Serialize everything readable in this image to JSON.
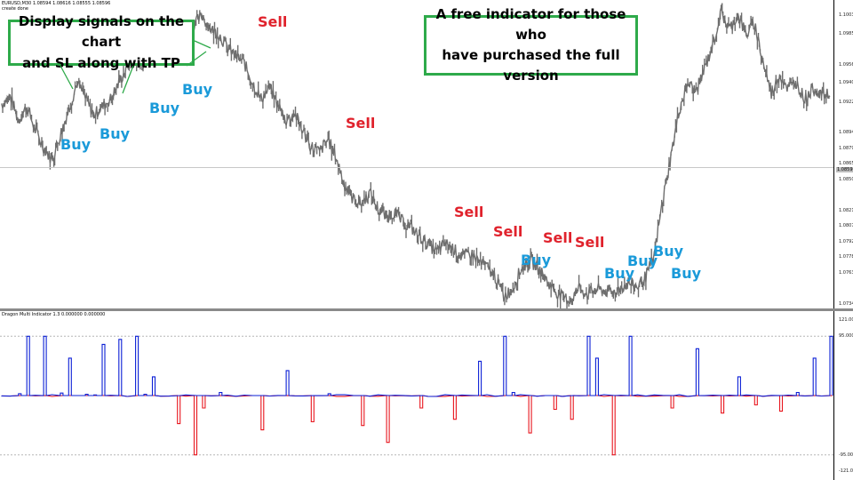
{
  "header": {
    "main_info": "EURUSD,M30  1.08594 1.08616 1.08555 1.08596",
    "script_label": "create done",
    "indicator_info": "Dragon Multi Indicator 1.3  0.000000 0.000000"
  },
  "annotations": {
    "left_callout_line1": "Display signals on the chart",
    "left_callout_line2": "and SL along with TP",
    "right_callout_line1": "A free indicator for those who",
    "right_callout_line2": "have purchased the full version"
  },
  "signals": [
    {
      "type": "sell",
      "label": "Sell"
    },
    {
      "type": "sell",
      "label": "Sell"
    },
    {
      "type": "sell",
      "label": "Sell"
    },
    {
      "type": "sell",
      "label": "Sell"
    },
    {
      "type": "sell",
      "label": "Sell"
    },
    {
      "type": "sell",
      "label": "Sell"
    },
    {
      "type": "buy",
      "label": "Buy"
    },
    {
      "type": "buy",
      "label": "Buy"
    },
    {
      "type": "buy",
      "label": "Buy"
    },
    {
      "type": "buy",
      "label": "Buy"
    },
    {
      "type": "buy",
      "label": "Buy"
    },
    {
      "type": "buy",
      "label": "Buy"
    },
    {
      "type": "buy",
      "label": "Buy"
    },
    {
      "type": "buy",
      "label": "Buy"
    }
  ],
  "colors": {
    "price_line": "#6e6e6e",
    "indicator_positive": "#0b1fd6",
    "indicator_negative": "#e8161e",
    "callout_border": "#2eaa4a",
    "sell_text": "#e0222c",
    "buy_text": "#1a9ad9"
  },
  "chart_data": [
    {
      "type": "line",
      "series": [
        {
          "values": [
            1.092,
            1.0928,
            1.0905,
            1.0918,
            1.0896,
            1.088,
            1.0868,
            1.0892,
            1.0915,
            1.094,
            1.0926,
            1.091,
            1.0918,
            1.0925,
            1.094,
            1.0955,
            1.0962,
            1.0958,
            1.097,
            1.0982,
            1.0988,
            1.0975,
            1.0986,
            1.0995,
            1.1002,
            1.099,
            1.0985,
            1.0972,
            1.0965,
            1.0958,
            1.094,
            1.0925,
            1.0935,
            1.092,
            1.0905,
            1.0912,
            1.0895,
            1.088,
            1.0876,
            1.0888,
            1.087,
            1.0845,
            1.0832,
            1.0828,
            1.0838,
            1.0822,
            1.0815,
            1.082,
            1.081,
            1.0805,
            1.0797,
            1.079,
            1.0783,
            1.0791,
            1.0786,
            1.0778,
            1.0782,
            1.0775,
            1.0769,
            1.076,
            1.0742,
            1.0748,
            1.0766,
            1.0775,
            1.077,
            1.0758,
            1.0748,
            1.0741,
            1.0738,
            1.075,
            1.0744,
            1.0749,
            1.0747,
            1.0745,
            1.075,
            1.0754,
            1.0751,
            1.076,
            1.078,
            1.083,
            1.0872,
            1.0915,
            1.094,
            1.0932,
            1.0952,
            1.0975,
            1.1005,
            1.099,
            1.1003,
            1.0985,
            1.0995,
            1.096,
            1.093,
            1.0948,
            1.0935,
            1.094,
            1.0925,
            1.0935,
            1.093,
            1.0928
          ]
        }
      ],
      "ylim": [
        1.07305,
        1.1017
      ],
      "y_ticks": [
        "1.10030",
        "1.09855",
        "1.09565",
        "1.09400",
        "1.09220",
        "1.08940",
        "1.08795",
        "1.08650",
        "1.08505",
        "1.08215",
        "1.08070",
        "1.07925",
        "1.07780",
        "1.07635",
        "1.07345"
      ],
      "current_price": "1.08596",
      "grid": false
    },
    {
      "type": "line",
      "series": [
        {
          "values": [
            0,
            0,
            3,
            95,
            0,
            95,
            0,
            4,
            60,
            0,
            2,
            1,
            82,
            0,
            90,
            0,
            95,
            2,
            30,
            0,
            0,
            -45,
            0,
            -95,
            -20,
            0,
            5,
            0,
            0,
            0,
            0,
            -55,
            0,
            0,
            40,
            0,
            0,
            -42,
            0,
            3,
            0,
            0,
            0,
            -48,
            0,
            0,
            -75,
            0,
            0,
            0,
            -20,
            0,
            0,
            0,
            -38,
            0,
            0,
            55,
            0,
            0,
            95,
            5,
            0,
            -60,
            0,
            0,
            -22,
            0,
            -38,
            0,
            95,
            60,
            0,
            -95,
            0,
            95,
            0,
            0,
            0,
            0,
            -20,
            0,
            0,
            75,
            0,
            0,
            -28,
            0,
            30,
            0,
            -15,
            0,
            0,
            -25,
            0,
            5,
            0,
            60,
            0,
            95
          ]
        }
      ],
      "ylim": [
        -121,
        121
      ],
      "y_ticks": [
        "121.0000",
        "95.0000",
        "-95.0000",
        "-121.0000"
      ],
      "grid": false
    }
  ]
}
